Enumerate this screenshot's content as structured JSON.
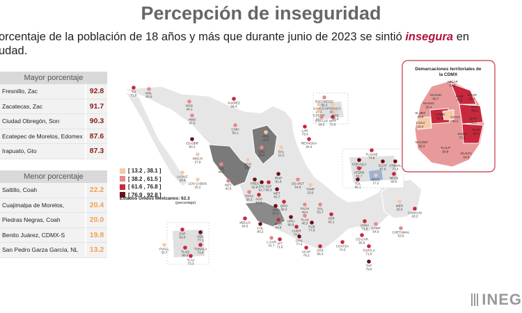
{
  "header": {
    "title": "Percepción de inseguridad",
    "subtitle_line1_pre": "orcentaje de la población de 18 años y más que durante junio de 2023 se sintió ",
    "subtitle_highlight": "insegura",
    "subtitle_line1_post": " en",
    "subtitle_line2": "udad."
  },
  "top_table": {
    "header": "Mayor porcentaje",
    "rows": [
      {
        "name": "Fresnillo, Zac",
        "value": "92.8"
      },
      {
        "name": "Zacatecas, Zac",
        "value": "91.7"
      },
      {
        "name": "Ciudad Obregón, Son",
        "value": "90.3"
      },
      {
        "name": "Ecatepec de Morelos, Edomex",
        "value": "87.6"
      },
      {
        "name": "Irapuato, Gto",
        "value": "87.3"
      }
    ]
  },
  "bottom_table": {
    "header": "Menor porcentaje",
    "rows": [
      {
        "name": "Saltillo, Coah",
        "value": "22.2"
      },
      {
        "name": "Cuajimalpa de Morelos, CDMX-P",
        "value": "20.4"
      },
      {
        "name": "Piedras Negras, Coah",
        "value": "20.0"
      },
      {
        "name": "Benito Juárez, CDMX-S",
        "value": "19.8"
      },
      {
        "name": "San Pedro Garza García, NL",
        "value": "13.2"
      }
    ]
  },
  "legend": [
    {
      "label": "[ 13.2 , 38.1 ]",
      "color": "#f6c9a8"
    },
    {
      "label": "[ 38.2 , 61.5 ]",
      "color": "#e8898b"
    },
    {
      "label": "[ 61.6 , 76.8 ]",
      "color": "#c8283c"
    },
    {
      "label": "[ 76.9 , 92.8 ]",
      "color": "#6b1016"
    }
  ],
  "national": {
    "label": "Estados Unidos Mexicanos:",
    "value": "62.3",
    "sub": "(porcentaje)"
  },
  "inset": {
    "title_line1": "Demarcaciones territoriales de",
    "title_line2": "la CDMX"
  },
  "logo": "INEG",
  "chart_data": {
    "type": "scatter",
    "title": "Percepción de inseguridad",
    "classes": [
      "[ 13.2 , 38.1 ]",
      "[ 38.2 , 61.5 ]",
      "[ 61.6 , 76.8 ]",
      "[ 76.9 , 92.8 ]"
    ],
    "cities": [
      {
        "name": "TIJ",
        "value": "71.8"
      },
      {
        "name": "MXL",
        "value": "60.6"
      },
      {
        "name": "NOG",
        "value": "44.1"
      },
      {
        "name": "HMO",
        "value": "47.0"
      },
      {
        "name": "JUAREZ",
        "value": "66.4"
      },
      {
        "name": "CHIH",
        "value": "56.1"
      },
      {
        "name": "CD.OBR",
        "value": "90.3"
      },
      {
        "name": "LA PAZ",
        "value": "26.8"
      },
      {
        "name": "LOS CABOS",
        "value": "25.2"
      },
      {
        "name": "MOCH",
        "value": "27.9"
      },
      {
        "name": "CUL",
        "value": "46.7"
      },
      {
        "name": "MZT",
        "value": "42.5"
      },
      {
        "name": "DGO",
        "value": "35.7"
      },
      {
        "name": "LAG",
        "value": "43.4"
      },
      {
        "name": "PNG",
        "value": "20.0"
      },
      {
        "name": "SAL",
        "value": "22.2"
      },
      {
        "name": "LAR",
        "value": "73.4"
      },
      {
        "name": "REYNOSA",
        "value": "64.4"
      },
      {
        "name": "ESCOBEDO",
        "value": "55.2"
      },
      {
        "name": "S.NICO",
        "value": "24.6"
      },
      {
        "name": "APODACA",
        "value": "38.1"
      },
      {
        "name": "S.PEDR",
        "value": "13.2"
      },
      {
        "name": "GPE",
        "value": "35.4"
      },
      {
        "name": "STA.CAT",
        "value": "38.5"
      },
      {
        "name": "MTY",
        "value": "70.8"
      },
      {
        "name": "TEPIC",
        "value": "38.3"
      },
      {
        "name": "FRES",
        "value": "92.8"
      },
      {
        "name": "ZAC",
        "value": "91.7"
      },
      {
        "name": "SLP",
        "value": "69.3"
      },
      {
        "name": "CD.VICT",
        "value": "54.9"
      },
      {
        "name": "TAMP",
        "value": "23.0"
      },
      {
        "name": "AGS",
        "value": "64.6"
      },
      {
        "name": "MZLLO",
        "value": "64.3"
      },
      {
        "name": "COL",
        "value": "80.2"
      },
      {
        "name": "L.CAR",
        "value": "41.7"
      },
      {
        "name": "MOR",
        "value": "64.8"
      },
      {
        "name": "URU",
        "value": "80.9"
      },
      {
        "name": "QRO",
        "value": "66.0"
      },
      {
        "name": "PACH",
        "value": "49.4"
      },
      {
        "name": "SAL",
        "value": "53.7"
      },
      {
        "name": "TLAX",
        "value": "45.3"
      },
      {
        "name": "PUE",
        "value": "77.9"
      },
      {
        "name": "VER",
        "value": "62.1"
      },
      {
        "name": "CUER",
        "value": "74.3"
      },
      {
        "name": "CHIL",
        "value": "77.4"
      },
      {
        "name": "ACAP",
        "value": "76.2"
      },
      {
        "name": "IXT",
        "value": "71.6"
      },
      {
        "name": "OAX",
        "value": "66.3"
      },
      {
        "name": "COATZA",
        "value": "74.3"
      },
      {
        "name": "VHSA",
        "value": "71.9"
      },
      {
        "name": "CAMP",
        "value": "54.9"
      },
      {
        "name": "CD.CAR",
        "value": "65.9"
      },
      {
        "name": "TUXTLA",
        "value": "71.6"
      },
      {
        "name": "TAP",
        "value": "79.6"
      },
      {
        "name": "MER",
        "value": "25.6"
      },
      {
        "name": "CANCUN",
        "value": "63.3"
      },
      {
        "name": "CHETUMAL",
        "value": "53.9"
      },
      {
        "name": "ZAP",
        "value": "62.5"
      },
      {
        "name": "GDL",
        "value": "77.1"
      },
      {
        "name": "TONALA",
        "value": "71.9"
      },
      {
        "name": "TLAQ",
        "value": "68.9"
      },
      {
        "name": "TLAJ",
        "value": "73.3"
      },
      {
        "name": "PVALL",
        "value": "30.7"
      },
      {
        "name": "TLALNE",
        "value": "74.8"
      },
      {
        "name": "CIZCALLI",
        "value": "77.3"
      },
      {
        "name": "ECAT",
        "value": "87.6"
      },
      {
        "name": "CHIMAL",
        "value": "77.4"
      },
      {
        "name": "ATZPN",
        "value": "61.7"
      },
      {
        "name": "NAUC",
        "value": "27.2"
      },
      {
        "name": "NEZA",
        "value": "68.5"
      },
      {
        "name": "TOL",
        "value": "85.1"
      },
      {
        "name": "MET",
        "value": "81.7"
      },
      {
        "name": "IRA",
        "value": "87.3"
      },
      {
        "name": "IRAP",
        "value": "81.5"
      }
    ],
    "cdmx": [
      {
        "name": "AZCAP",
        "value": "63.3"
      },
      {
        "name": "CUAUH",
        "value": "60.7"
      },
      {
        "name": "GAM",
        "value": "79.3"
      },
      {
        "name": "V.CAR",
        "value": "51.3"
      },
      {
        "name": "M.HGO",
        "value": "28.4"
      },
      {
        "name": "IZTC",
        "value": "68.8"
      },
      {
        "name": "B. JRZ",
        "value": "19.8"
      },
      {
        "name": "A.OBR",
        "value": "62.4"
      },
      {
        "name": "COYO",
        "value": "40.2"
      },
      {
        "name": "IZTP",
        "value": "75.1"
      },
      {
        "name": "CUAJ",
        "value": "20.4"
      },
      {
        "name": "TLHC",
        "value": "66.4"
      },
      {
        "name": "XOCH",
        "value": "73.2"
      },
      {
        "name": "M.CONT",
        "value": "56.3"
      },
      {
        "name": "TLALP",
        "value": "50.8"
      },
      {
        "name": "M.ALTA",
        "value": "54.6"
      }
    ]
  }
}
